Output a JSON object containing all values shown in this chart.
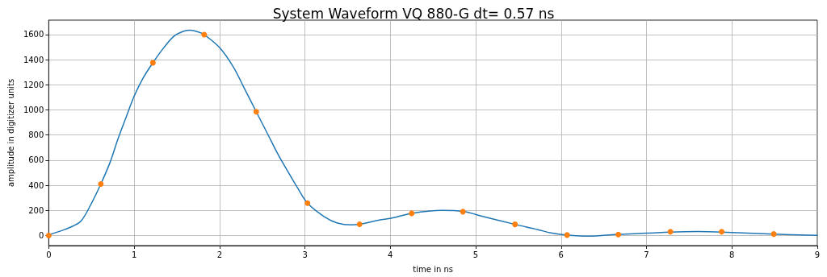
{
  "chart_data": {
    "type": "line",
    "title": "System Waveform VQ 880-G dt= 0.57 ns",
    "xlabel": "time in ns",
    "ylabel": "amplitude in digitizer units",
    "xlim": [
      0,
      9
    ],
    "xticks": [
      0,
      1,
      2,
      3,
      4,
      5,
      6,
      7,
      8,
      9
    ],
    "ylim": [
      -80,
      1715
    ],
    "yticks": [
      0,
      200,
      400,
      600,
      800,
      1000,
      1200,
      1400,
      1600
    ],
    "grid": true,
    "series": [
      {
        "color": "#1f77b4",
        "marker": "none",
        "line_style": "solid",
        "x": [
          0,
          0.19,
          0.28,
          0.38,
          0.5,
          0.61,
          0.72,
          0.81,
          0.91,
          1.0,
          1.1,
          1.22,
          1.35,
          1.47,
          1.58,
          1.66,
          1.75,
          1.82,
          2.0,
          2.16,
          2.29,
          2.43,
          2.57,
          2.69,
          2.79,
          2.91,
          3.03,
          3.23,
          3.38,
          3.54,
          3.64,
          3.87,
          4.01,
          4.25,
          4.6,
          4.85,
          5.1,
          5.46,
          5.73,
          5.88,
          6.07,
          6.32,
          6.67,
          7.01,
          7.28,
          7.6,
          7.88,
          8.49,
          9.0
        ],
        "values": [
          5,
          49,
          74,
          117,
          256,
          410,
          586,
          768,
          949,
          1109,
          1248,
          1376,
          1498,
          1589,
          1627,
          1635,
          1621,
          1600,
          1497,
          1344,
          1173,
          986,
          800,
          640,
          522,
          384,
          258,
          149,
          100,
          85,
          90,
          124,
          138,
          177,
          200,
          192,
          149,
          89,
          47,
          21,
          4,
          -5,
          10,
          19,
          28,
          32,
          28,
          11,
          2
        ]
      },
      {
        "type": "scatter",
        "color": "#ff7f0e",
        "marker": "circle",
        "x": [
          0,
          0.61,
          1.22,
          1.82,
          2.43,
          3.03,
          3.64,
          4.25,
          4.85,
          5.46,
          6.07,
          6.67,
          7.28,
          7.88,
          8.49
        ],
        "values": [
          0,
          410,
          1376,
          1600,
          986,
          258,
          90,
          177,
          190,
          89,
          4,
          8,
          30,
          30,
          12
        ]
      }
    ]
  }
}
